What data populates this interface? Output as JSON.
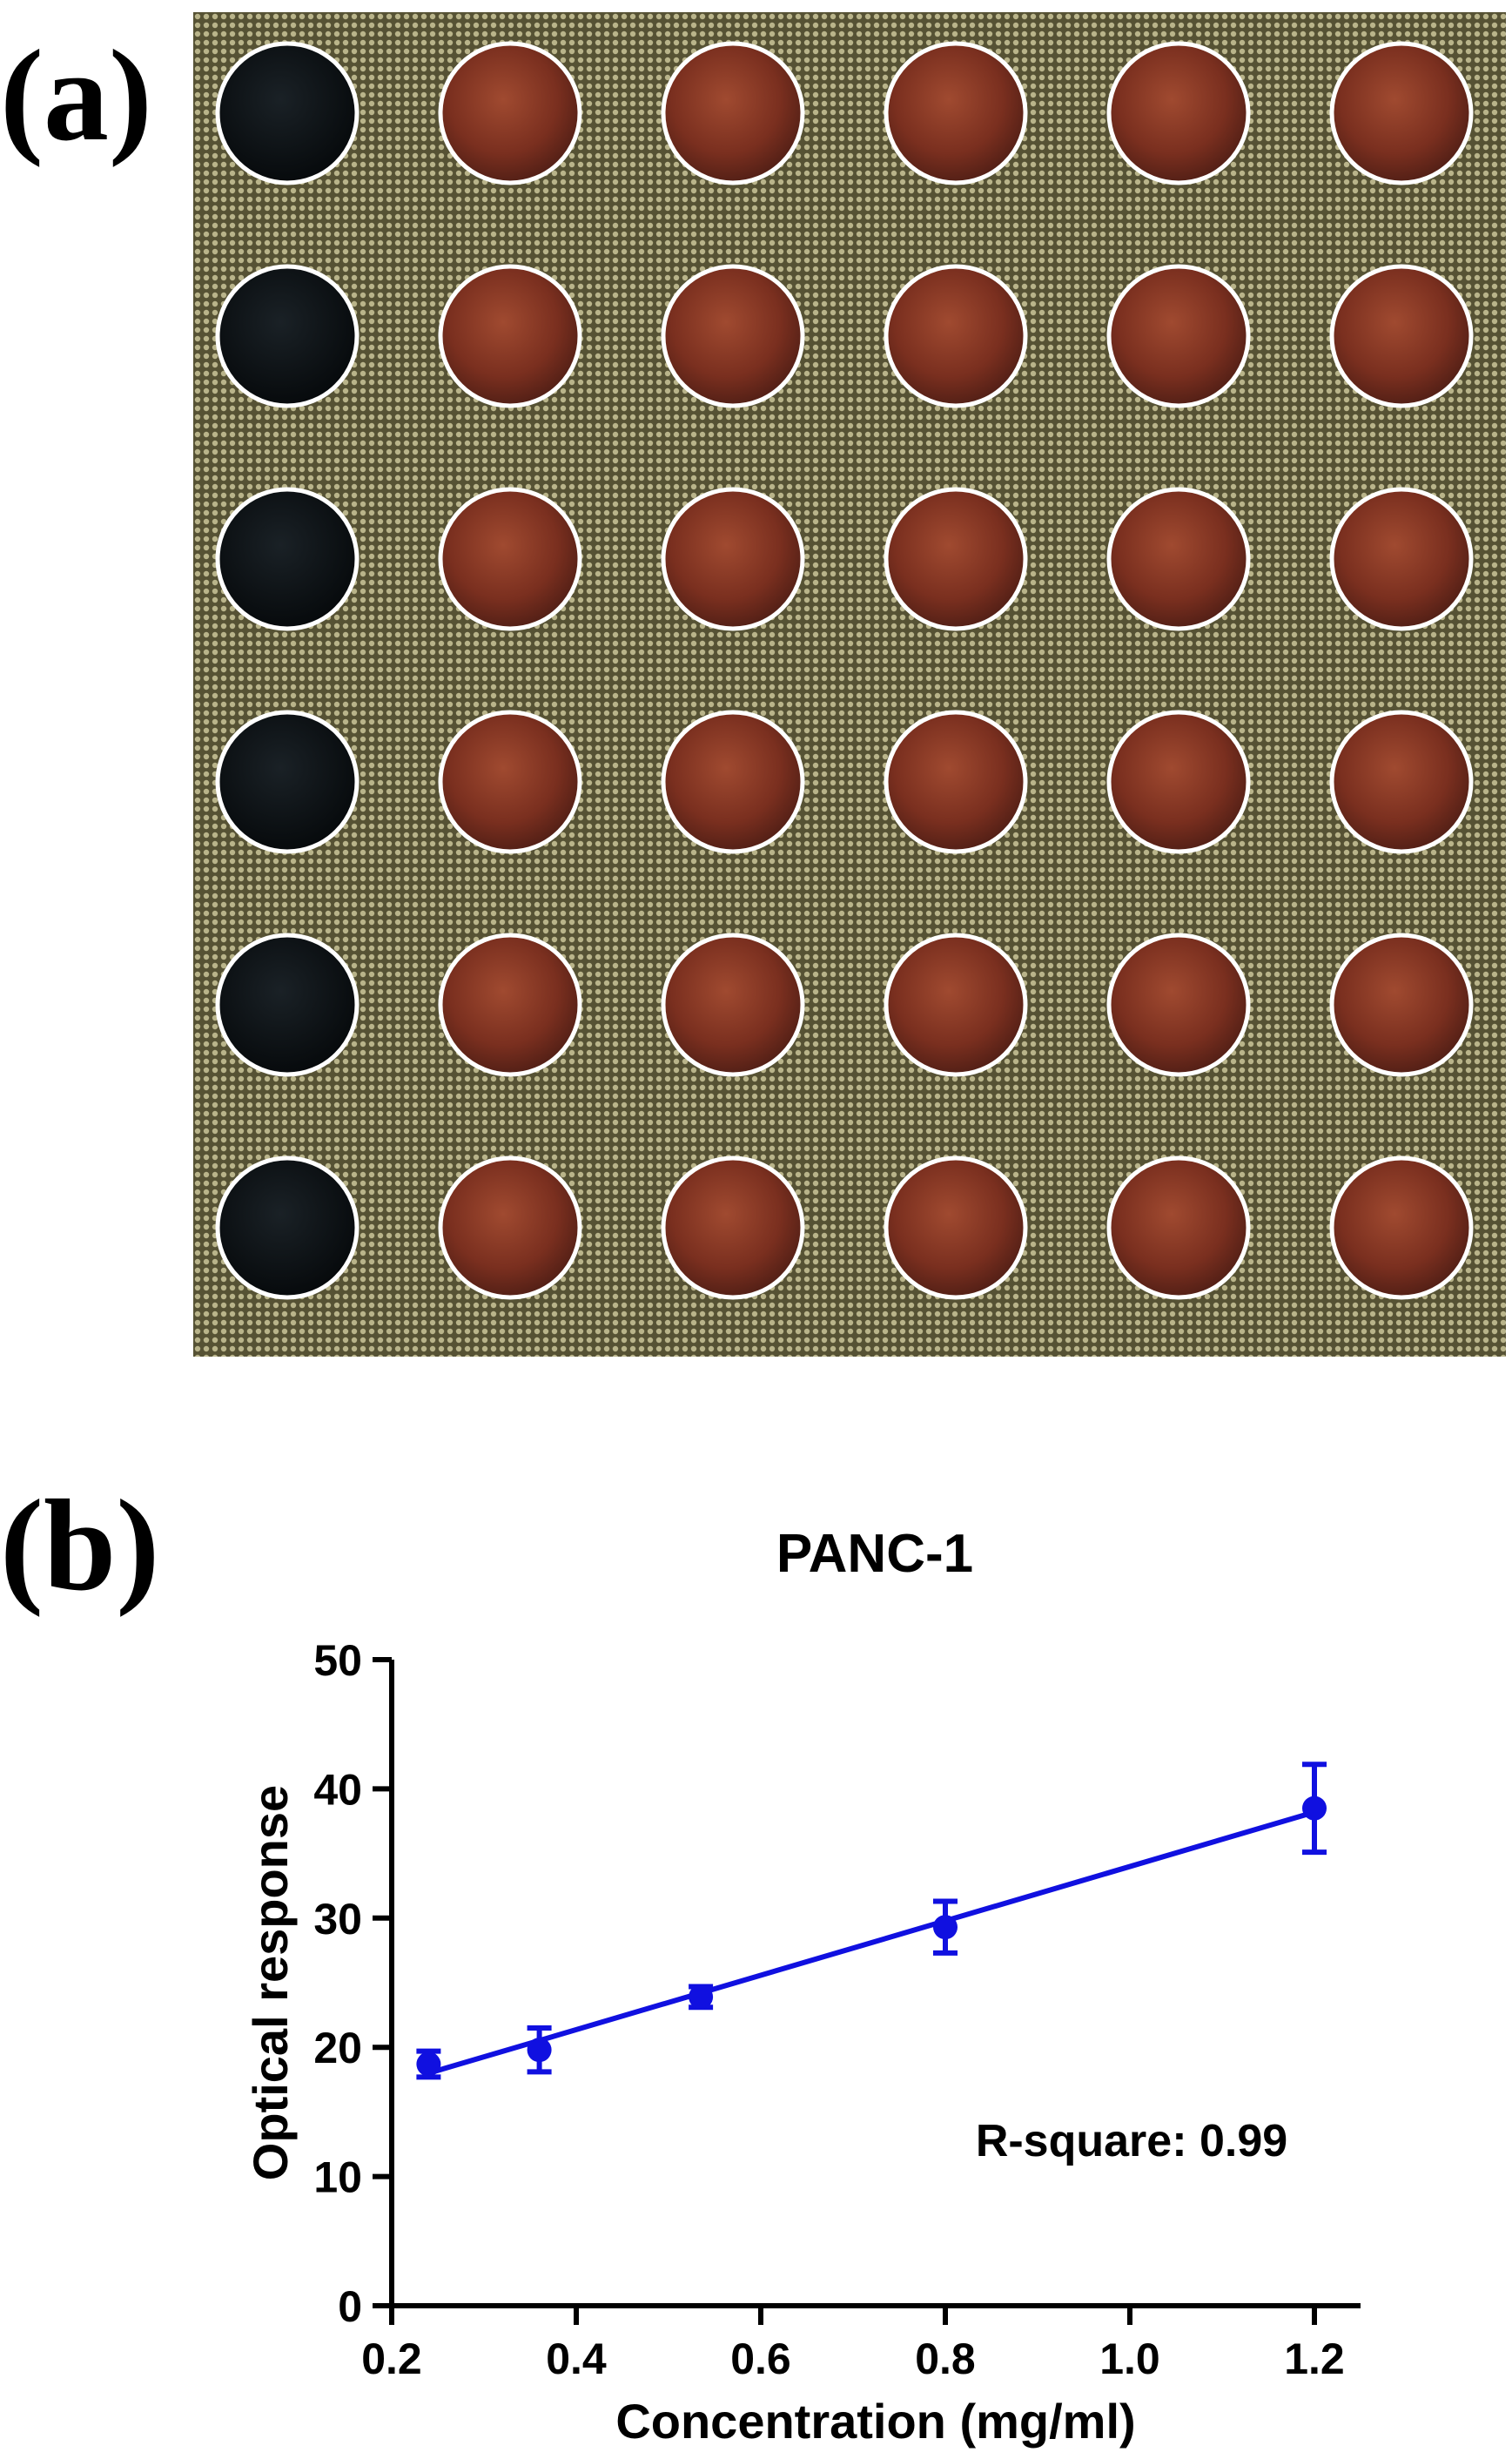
{
  "panel_a": {
    "label": "(a)",
    "rows": 6,
    "cols": 6,
    "colors": {
      "background": "#6f6a48",
      "control_well": "#0d1114",
      "sample_well": "#8a3b26",
      "well_border": "#ffffff"
    }
  },
  "panel_b": {
    "label": "(b)"
  },
  "chart_data": {
    "type": "scatter",
    "title": "PANC-1",
    "xlabel": "Concentration (mg/ml)",
    "ylabel": "Optical response",
    "xlim": [
      0.2,
      1.25
    ],
    "ylim": [
      0,
      50
    ],
    "xticks": [
      0.2,
      0.4,
      0.6,
      0.8,
      1.0,
      1.2
    ],
    "xtick_labels": [
      "0.2",
      "0.4",
      "0.6",
      "0.8",
      "1.0",
      "1.2"
    ],
    "yticks": [
      0,
      10,
      20,
      30,
      40,
      50
    ],
    "ytick_labels": [
      "0",
      "10",
      "20",
      "30",
      "40",
      "50"
    ],
    "series": [
      {
        "name": "PANC-1",
        "color": "#1010e0",
        "x": [
          0.24,
          0.36,
          0.535,
          0.8,
          1.2
        ],
        "y": [
          18.7,
          19.8,
          23.9,
          29.3,
          38.5
        ],
        "yerr": [
          1.0,
          1.7,
          0.8,
          2.0,
          3.4
        ]
      }
    ],
    "fit": {
      "type": "linear",
      "x": [
        0.24,
        1.2
      ],
      "y": [
        18.0,
        38.2
      ]
    },
    "annotation": "R-square: 0.99"
  }
}
